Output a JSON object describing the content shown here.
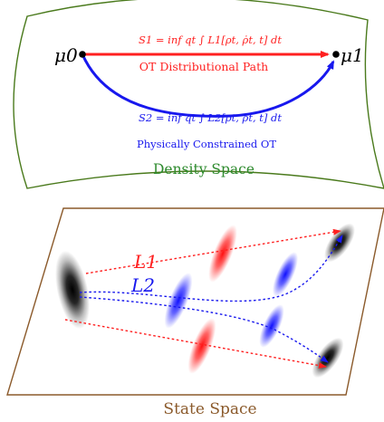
{
  "colors": {
    "density_border": "#4a7a1c",
    "density_label": "#2e8b2e",
    "state_border": "#8b5a2b",
    "state_label": "#8b5a2b",
    "red": "#ff2020",
    "blue": "#1818ee",
    "black": "#000000"
  },
  "density_space": {
    "label": "Density Space",
    "mu0": "μ0",
    "mu1": "μ1",
    "formula1": "S1 = inf qt ∫ L1[ρt, ρ̇t, t] dt",
    "path1_label": "OT Distributional Path",
    "formula2": "S2 = inf qt ∫ L2[ρt, ρ̇t, t] dt",
    "path2_label": "Physically Constrained OT"
  },
  "state_space": {
    "label": "State Space",
    "L1": "L1",
    "L2": "L2"
  }
}
